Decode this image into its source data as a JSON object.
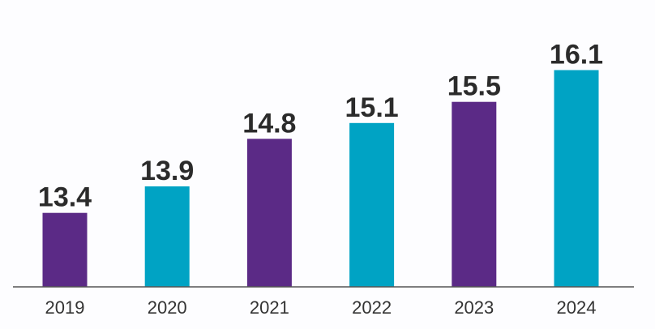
{
  "chart_data": {
    "type": "bar",
    "title": "",
    "xlabel": "",
    "ylabel": "",
    "categories": [
      "2019",
      "2020",
      "2021",
      "2022",
      "2023",
      "2024"
    ],
    "values": [
      13.4,
      13.9,
      14.8,
      15.1,
      15.5,
      16.1
    ],
    "data_labels": [
      "13.4",
      "13.9",
      "14.8",
      "15.1",
      "15.5",
      "16.1"
    ],
    "bar_colors": [
      "#5b2a86",
      "#00a3c4",
      "#5b2a86",
      "#00a3c4",
      "#5b2a86",
      "#00a3c4"
    ],
    "label_color": "#2b2b2b",
    "baseline_color": "#555555",
    "ylim": [
      12.0,
      16.2
    ],
    "grid": false,
    "legend": "none"
  }
}
